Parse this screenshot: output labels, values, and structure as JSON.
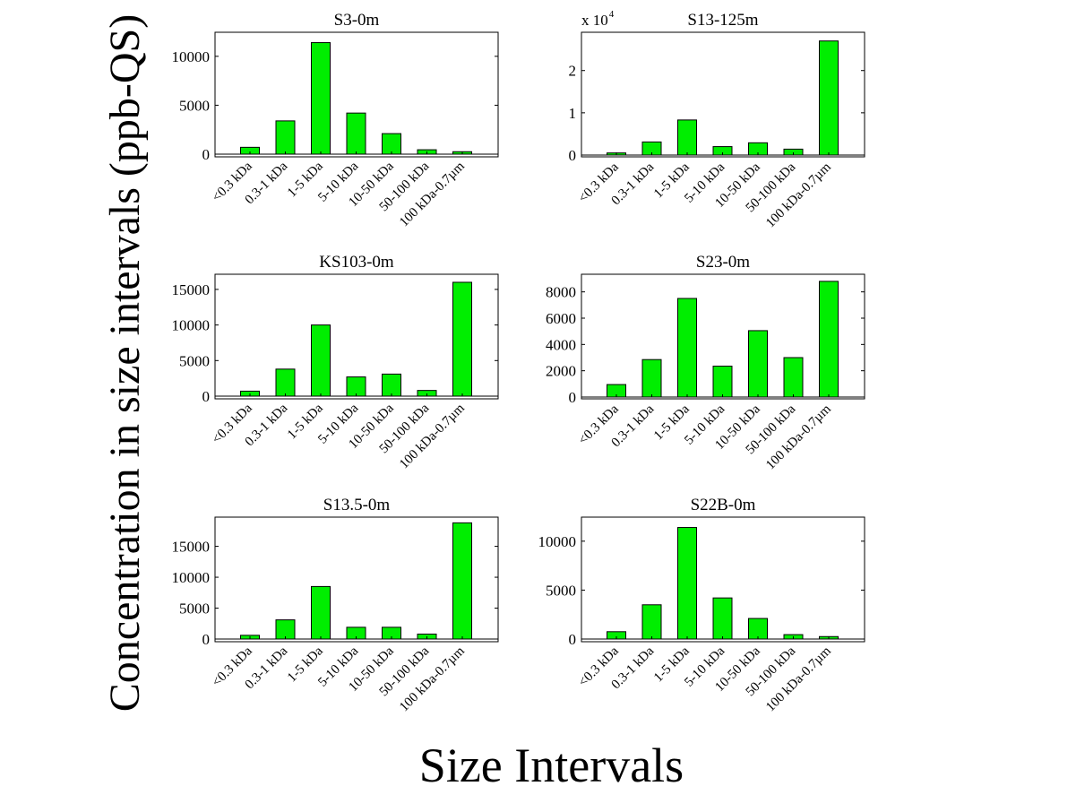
{
  "figure": {
    "xlabel": "Size Intervals",
    "ylabel": "Concentration in size intervals (ppb-QS)",
    "bar_color": "#00ee00"
  },
  "chart_data": [
    {
      "type": "bar",
      "title": "S3-0m",
      "categories": [
        "<0.3 kDa",
        "0.3-1 kDa",
        "1-5 kDa",
        "5-10 kDa",
        "10-50 kDa",
        "50-100 kDa",
        "100 kDa-0.7µm"
      ],
      "values": [
        700,
        3400,
        11400,
        4200,
        2100,
        450,
        250
      ],
      "ylim": [
        0,
        12000
      ],
      "yticks": [
        0,
        5000,
        10000
      ],
      "ytick_labels": [
        "0",
        "5000",
        "10000"
      ],
      "multiplier": ""
    },
    {
      "type": "bar",
      "title": "S13-125m",
      "categories": [
        "<0.3 kDa",
        "0.3-1 kDa",
        "1-5 kDa",
        "5-10 kDa",
        "10-50 kDa",
        "50-100 kDa",
        "100 kDa-0.7µm"
      ],
      "values": [
        500,
        3100,
        8300,
        2000,
        2900,
        1400,
        27000
      ],
      "ylim": [
        0,
        28000
      ],
      "yticks": [
        0,
        10000,
        20000
      ],
      "ytick_labels": [
        "0",
        "1",
        "2"
      ],
      "multiplier": "x 10",
      "multiplier_exponent": "4"
    },
    {
      "type": "bar",
      "title": "KS103-0m",
      "categories": [
        "<0.3 kDa",
        "0.3-1 kDa",
        "1-5 kDa",
        "5-10 kDa",
        "10-50 kDa",
        "50-100 kDa",
        "100 kDa-0.7µm"
      ],
      "values": [
        700,
        3800,
        10000,
        2700,
        3100,
        800,
        16000
      ],
      "ylim": [
        0,
        16500
      ],
      "yticks": [
        0,
        5000,
        10000,
        15000
      ],
      "ytick_labels": [
        "0",
        "5000",
        "10000",
        "15000"
      ],
      "multiplier": ""
    },
    {
      "type": "bar",
      "title": "S23-0m",
      "categories": [
        "<0.3 kDa",
        "0.3-1 kDa",
        "1-5 kDa",
        "5-10 kDa",
        "10-50 kDa",
        "50-100 kDa",
        "100 kDa-0.7µm"
      ],
      "values": [
        950,
        2850,
        7500,
        2350,
        5050,
        3000,
        8800
      ],
      "ylim": [
        0,
        9000
      ],
      "yticks": [
        0,
        2000,
        4000,
        6000,
        8000
      ],
      "ytick_labels": [
        "0",
        "2000",
        "4000",
        "6000",
        "8000"
      ],
      "multiplier": ""
    },
    {
      "type": "bar",
      "title": "S13.5-0m",
      "categories": [
        "<0.3 kDa",
        "0.3-1 kDa",
        "1-5 kDa",
        "5-10 kDa",
        "10-50 kDa",
        "50-100 kDa",
        "100 kDa-0.7µm"
      ],
      "values": [
        600,
        3100,
        8500,
        1900,
        1900,
        800,
        18800
      ],
      "ylim": [
        0,
        19000
      ],
      "yticks": [
        0,
        5000,
        10000,
        15000
      ],
      "ytick_labels": [
        "0",
        "5000",
        "10000",
        "15000"
      ],
      "multiplier": ""
    },
    {
      "type": "bar",
      "title": "S22B-0m",
      "categories": [
        "<0.3 kDa",
        "0.3-1 kDa",
        "1-5 kDa",
        "5-10 kDa",
        "10-50 kDa",
        "50-100 kDa",
        "100 kDa-0.7µm"
      ],
      "values": [
        750,
        3500,
        11400,
        4200,
        2100,
        450,
        250
      ],
      "ylim": [
        0,
        12000
      ],
      "yticks": [
        0,
        5000,
        10000
      ],
      "ytick_labels": [
        "0",
        "5000",
        "10000"
      ],
      "multiplier": ""
    }
  ]
}
